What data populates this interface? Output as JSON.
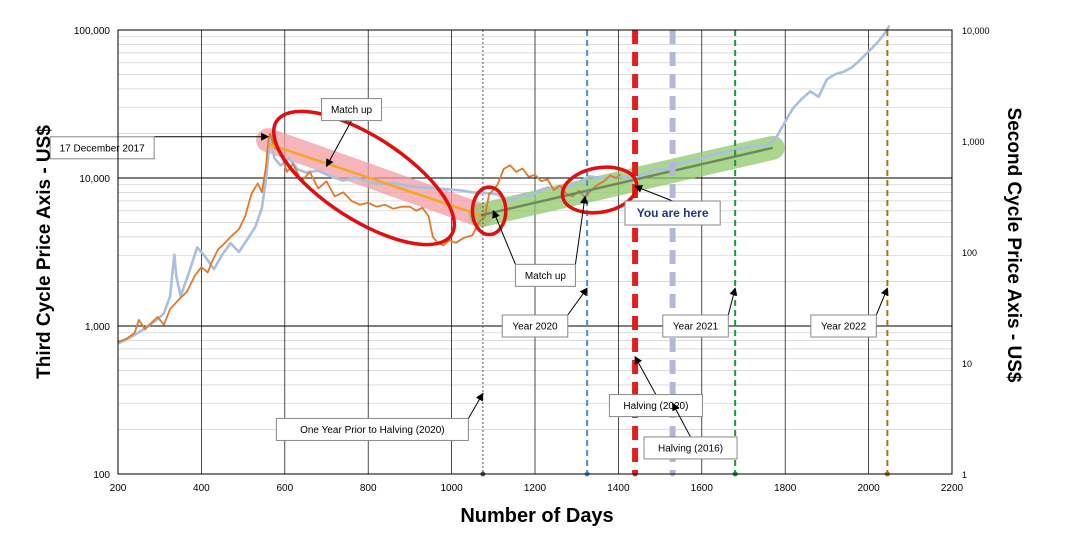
{
  "chart_data": {
    "type": "line",
    "xlabel": "Number of Days",
    "ylabel_left": "Third Cycle Price Axis - US$",
    "ylabel_right": "Second Cycle Price Axis - US$",
    "xlim": [
      200,
      2200
    ],
    "x_ticks": [
      "200",
      "400",
      "600",
      "800",
      "1000",
      "1200",
      "1400",
      "1600",
      "1800",
      "2000",
      "2200"
    ],
    "ylim_left": [
      100,
      100000
    ],
    "ylim_right": [
      1,
      10000
    ],
    "y_scale": "log",
    "left_ticks": [
      {
        "v": 100,
        "label": "100"
      },
      {
        "v": 1000,
        "label": "1,000"
      },
      {
        "v": 10000,
        "label": "10,000"
      },
      {
        "v": 100000,
        "label": "100,000"
      }
    ],
    "right_ticks": [
      {
        "v": 1,
        "label": "1"
      },
      {
        "v": 10,
        "label": "10"
      },
      {
        "v": 100,
        "label": "100"
      },
      {
        "v": 1000,
        "label": "1,000"
      },
      {
        "v": 10000,
        "label": "10,000"
      }
    ],
    "grid": true,
    "series": [
      {
        "axis": "right",
        "color": "#a9bfe0",
        "points": [
          [
            200,
            15
          ],
          [
            230,
            17
          ],
          [
            260,
            20
          ],
          [
            290,
            24
          ],
          [
            310,
            28
          ],
          [
            325,
            40
          ],
          [
            335,
            95
          ],
          [
            340,
            60
          ],
          [
            350,
            40
          ],
          [
            370,
            65
          ],
          [
            390,
            110
          ],
          [
            410,
            90
          ],
          [
            430,
            70
          ],
          [
            450,
            95
          ],
          [
            470,
            120
          ],
          [
            490,
            100
          ],
          [
            510,
            130
          ],
          [
            530,
            170
          ],
          [
            545,
            250
          ],
          [
            555,
            450
          ],
          [
            565,
            1100
          ],
          [
            575,
            700
          ],
          [
            590,
            600
          ],
          [
            610,
            700
          ],
          [
            630,
            560
          ],
          [
            650,
            520
          ],
          [
            680,
            540
          ],
          [
            710,
            480
          ],
          [
            740,
            440
          ],
          [
            770,
            470
          ],
          [
            800,
            430
          ],
          [
            830,
            410
          ],
          [
            860,
            420
          ],
          [
            900,
            390
          ],
          [
            940,
            380
          ],
          [
            980,
            370
          ],
          [
            1020,
            360
          ],
          [
            1050,
            345
          ],
          [
            1080,
            340
          ],
          [
            1110,
            330
          ],
          [
            1130,
            290
          ],
          [
            1150,
            300
          ],
          [
            1170,
            330
          ],
          [
            1190,
            320
          ],
          [
            1210,
            360
          ],
          [
            1230,
            380
          ],
          [
            1250,
            370
          ],
          [
            1270,
            390
          ],
          [
            1290,
            400
          ],
          [
            1310,
            440
          ],
          [
            1330,
            480
          ],
          [
            1350,
            470
          ],
          [
            1370,
            460
          ],
          [
            1400,
            480
          ],
          [
            1430,
            460
          ],
          [
            1460,
            500
          ],
          [
            1490,
            560
          ],
          [
            1510,
            550
          ],
          [
            1540,
            620
          ],
          [
            1570,
            660
          ],
          [
            1600,
            700
          ],
          [
            1630,
            760
          ],
          [
            1660,
            800
          ],
          [
            1690,
            850
          ],
          [
            1720,
            900
          ],
          [
            1750,
            900
          ],
          [
            1770,
            1000
          ],
          [
            1780,
            1100
          ],
          [
            1800,
            1500
          ],
          [
            1820,
            2000
          ],
          [
            1840,
            2400
          ],
          [
            1860,
            2800
          ],
          [
            1880,
            2500
          ],
          [
            1900,
            3600
          ],
          [
            1920,
            4000
          ],
          [
            1940,
            4200
          ],
          [
            1960,
            4600
          ],
          [
            1980,
            5400
          ],
          [
            2000,
            6400
          ],
          [
            2020,
            7600
          ],
          [
            2040,
            9500
          ],
          [
            2050,
            11000
          ]
        ]
      },
      {
        "axis": "left",
        "color": "#e07a2a",
        "points": [
          [
            200,
            780
          ],
          [
            220,
            820
          ],
          [
            240,
            900
          ],
          [
            250,
            1100
          ],
          [
            265,
            950
          ],
          [
            280,
            1050
          ],
          [
            295,
            1150
          ],
          [
            310,
            1020
          ],
          [
            325,
            1300
          ],
          [
            345,
            1500
          ],
          [
            365,
            1700
          ],
          [
            385,
            2200
          ],
          [
            400,
            2500
          ],
          [
            415,
            2300
          ],
          [
            425,
            2700
          ],
          [
            440,
            3300
          ],
          [
            455,
            3600
          ],
          [
            470,
            4000
          ],
          [
            490,
            4500
          ],
          [
            505,
            5500
          ],
          [
            520,
            7800
          ],
          [
            535,
            9200
          ],
          [
            545,
            8000
          ],
          [
            555,
            12000
          ],
          [
            560,
            17500
          ],
          [
            565,
            20000
          ],
          [
            575,
            16000
          ],
          [
            590,
            15000
          ],
          [
            605,
            11000
          ],
          [
            620,
            12500
          ],
          [
            640,
            9500
          ],
          [
            660,
            11000
          ],
          [
            680,
            8500
          ],
          [
            700,
            9500
          ],
          [
            720,
            7500
          ],
          [
            740,
            8000
          ],
          [
            760,
            7000
          ],
          [
            780,
            6600
          ],
          [
            800,
            6800
          ],
          [
            820,
            6400
          ],
          [
            840,
            6600
          ],
          [
            860,
            6200
          ],
          [
            880,
            6400
          ],
          [
            900,
            6400
          ],
          [
            915,
            6000
          ],
          [
            930,
            6300
          ],
          [
            945,
            5500
          ],
          [
            955,
            4000
          ],
          [
            965,
            3700
          ],
          [
            980,
            3500
          ],
          [
            995,
            3800
          ],
          [
            1010,
            3650
          ],
          [
            1030,
            3950
          ],
          [
            1050,
            4100
          ],
          [
            1065,
            5000
          ],
          [
            1080,
            5500
          ],
          [
            1090,
            7800
          ],
          [
            1100,
            8300
          ],
          [
            1110,
            9000
          ],
          [
            1125,
            11500
          ],
          [
            1140,
            12200
          ],
          [
            1155,
            11000
          ],
          [
            1170,
            11600
          ],
          [
            1185,
            10200
          ],
          [
            1200,
            10500
          ],
          [
            1215,
            9500
          ],
          [
            1230,
            9800
          ],
          [
            1245,
            8300
          ],
          [
            1260,
            8900
          ],
          [
            1275,
            7800
          ],
          [
            1290,
            7500
          ],
          [
            1305,
            8200
          ],
          [
            1320,
            7400
          ],
          [
            1335,
            8300
          ],
          [
            1350,
            9000
          ],
          [
            1365,
            9500
          ],
          [
            1380,
            10400
          ],
          [
            1395,
            10000
          ],
          [
            1405,
            10600
          ]
        ]
      }
    ],
    "vertical_lines": [
      {
        "x": 1075,
        "color": "#555555",
        "style": "dotted",
        "width": 1
      },
      {
        "x": 1325,
        "color": "#4a8fd0",
        "style": "dashed",
        "width": 2
      },
      {
        "x": 1440,
        "color": "#e02020",
        "style": "dashed",
        "width": 6
      },
      {
        "x": 1530,
        "color": "#b4b8d8",
        "style": "dashed",
        "width": 6
      },
      {
        "x": 1680,
        "color": "#1a9a3a",
        "style": "dashed",
        "width": 2
      },
      {
        "x": 2045,
        "color": "#a07a10",
        "style": "dashed",
        "width": 2
      }
    ],
    "annotations": [
      {
        "text": "17 December 2017",
        "box_x": 162,
        "box_y": 112,
        "box_y_val": 16000,
        "target_x": 560,
        "target_y": 19000
      },
      {
        "text": "Match up",
        "box_x": 760,
        "box_y": 95,
        "box_y_val": 29000,
        "target_x": 700,
        "target_y": 12000
      },
      {
        "text": "Match up",
        "box_x": 1225,
        "box_y": 265,
        "box_y_val": 2200,
        "target_x": 1100,
        "target_y": 6000,
        "target2_x": 1320,
        "target2_y": 7500
      },
      {
        "text": "Year 2020",
        "box_x": 1200,
        "box_y": 325,
        "box_y_val": 1000,
        "target_x": 1325,
        "target_y": 1800
      },
      {
        "text": "Year 2021",
        "box_x": 1585,
        "box_y": 325,
        "box_y_val": 1000,
        "target_x": 1680,
        "target_y": 1800
      },
      {
        "text": "Year 2022",
        "box_x": 1940,
        "box_y": 325,
        "box_y_val": 1000,
        "target_x": 2045,
        "target_y": 1800
      },
      {
        "text": "One Year Prior to Halving (2020)",
        "box_x": 810,
        "box_y": 418,
        "box_y_val": 200,
        "target_x": 1075,
        "target_y": 350
      },
      {
        "text": "Halving (2020)",
        "box_x": 1490,
        "box_y": 403,
        "box_y_val": 290,
        "target_x": 1440,
        "target_y": 620
      },
      {
        "text": "Halving (2016)",
        "box_x": 1573,
        "box_y": 454,
        "box_y_val": 150,
        "target_x": 1530,
        "target_y": 300
      }
    ],
    "you_are_here": {
      "text": "You are here",
      "box_x": 1530,
      "box_y": 222,
      "box_y_val": 5800,
      "target_x": 1440,
      "target_y": 8800
    },
    "trend_bands": [
      {
        "color": "#f29ca3",
        "points": [
          [
            560,
            18000
          ],
          [
            1070,
            5600
          ]
        ]
      },
      {
        "color": "#8fc86a",
        "points": [
          [
            1070,
            5600
          ],
          [
            1770,
            16000
          ]
        ]
      }
    ],
    "trend_lines": [
      {
        "color": "#f5a623",
        "points": [
          [
            560,
            17000
          ],
          [
            1070,
            5600
          ]
        ]
      },
      {
        "color": "#6e8a5a",
        "points": [
          [
            1070,
            5600
          ],
          [
            1770,
            16000
          ]
        ]
      }
    ],
    "ellipses": [
      {
        "cx": 790,
        "cy": 10000,
        "rx_days": 250,
        "ry_decades": 0.28,
        "angle_deg": 33
      },
      {
        "cx": 1090,
        "cy": 6000,
        "rx_days": 40,
        "ry_decades": 0.16,
        "angle_deg": 0
      },
      {
        "cx": 1355,
        "cy": 8300,
        "rx_days": 90,
        "ry_decades": 0.15,
        "angle_deg": -10
      }
    ]
  }
}
